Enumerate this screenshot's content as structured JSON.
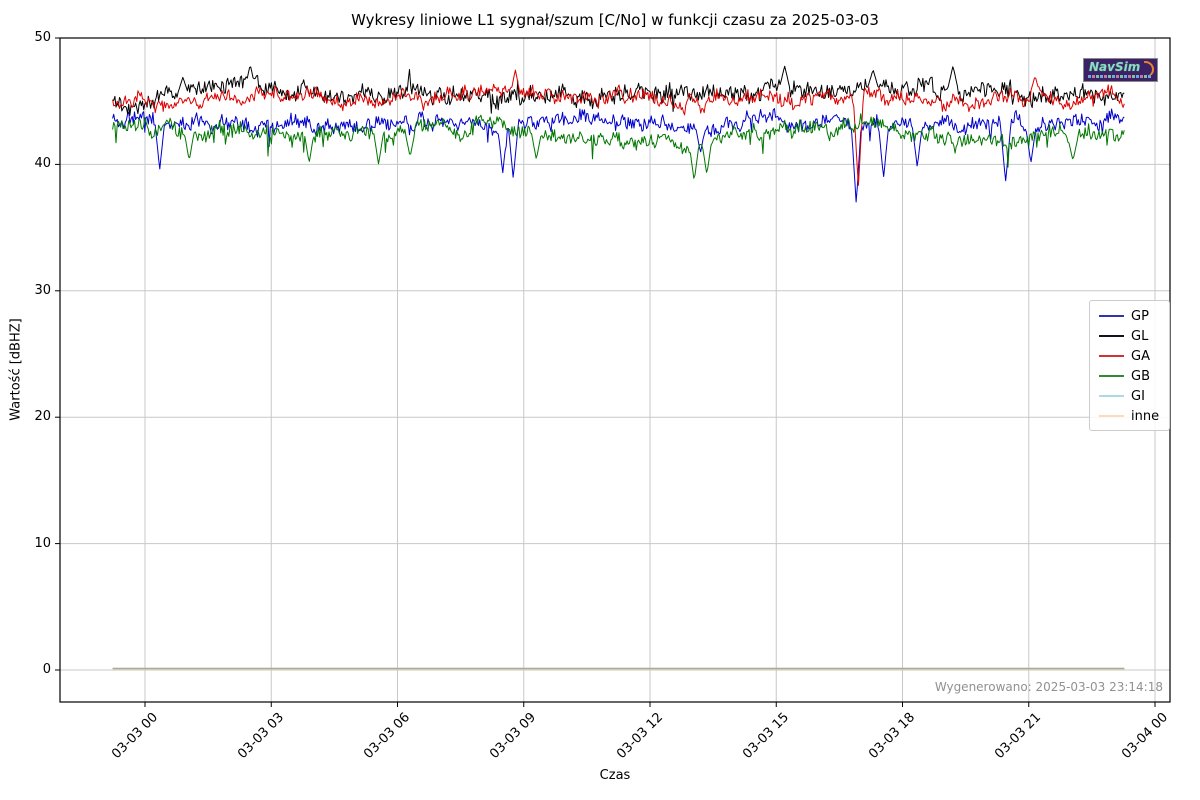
{
  "title": "Wykresy liniowe L1 sygnał/szum [C/No] w funkcji czasu za 2025-03-03",
  "generated_note": "Wygenerowano: 2025-03-03 23:14:18",
  "watermark": {
    "text": "NavSim"
  },
  "chart_data": {
    "type": "line",
    "title": "Wykresy liniowe L1 sygnał/szum [C/No] w funkcji czasu za 2025-03-03",
    "xlabel": "Czas",
    "ylabel": "Wartość [dBHZ]",
    "grid": true,
    "legend_position": "right",
    "y_ticks": [
      0,
      10,
      20,
      30,
      40,
      50
    ],
    "ylim": [
      -2.5,
      50
    ],
    "x_tick_labels": [
      "03-03 00",
      "03-03 03",
      "03-03 06",
      "03-03 09",
      "03-03 12",
      "03-03 15",
      "03-03 18",
      "03-03 21",
      "03-04 00"
    ],
    "x_tick_hours": [
      0,
      3,
      6,
      9,
      12,
      15,
      18,
      21,
      24
    ],
    "data_time_range_hours": [
      -0.77,
      23.27
    ],
    "series": [
      {
        "name": "GP",
        "color": "#0000cc",
        "legend_color": "#3333aa",
        "width": 1,
        "noise": 0.45,
        "spike_prob": 0.03,
        "spike_amp": 1.6,
        "spike_dir": -1,
        "seed": 11,
        "base_hourly": [
          43.6,
          43.2,
          43.4,
          43.6,
          43.3,
          43.1,
          43.5,
          43.3,
          43.0,
          43.2,
          43.6,
          43.4,
          43.2,
          43.0,
          43.3,
          43.7,
          43.5,
          43.2,
          43.0,
          43.3,
          43.1,
          42.9,
          43.3,
          43.5,
          43.4
        ],
        "dips": [
          [
            0.35,
            39.6
          ],
          [
            8.5,
            39.3
          ],
          [
            8.75,
            38.9
          ],
          [
            13.2,
            40.9
          ],
          [
            16.9,
            36.9
          ],
          [
            17.55,
            38.9
          ],
          [
            18.35,
            39.8
          ],
          [
            20.45,
            38.6
          ],
          [
            21.05,
            40.1
          ]
        ],
        "peaks": []
      },
      {
        "name": "GL",
        "color": "#000000",
        "legend_color": "#111122",
        "width": 1,
        "noise": 0.55,
        "spike_prob": 0.04,
        "spike_amp": 1.1,
        "spike_dir": 0,
        "seed": 22,
        "base_hourly": [
          45.3,
          45.7,
          46.2,
          45.9,
          45.6,
          45.4,
          45.7,
          45.5,
          45.3,
          45.6,
          45.4,
          45.5,
          45.7,
          45.4,
          45.6,
          46.1,
          45.9,
          46.2,
          46.0,
          46.1,
          45.6,
          45.4,
          45.7,
          45.5,
          45.4
        ],
        "dips": [],
        "peaks": [
          [
            0.9,
            46.9
          ],
          [
            2.5,
            47.9
          ],
          [
            15.2,
            47.8
          ],
          [
            17.3,
            47.5
          ],
          [
            19.2,
            47.8
          ]
        ]
      },
      {
        "name": "GA",
        "color": "#dd0000",
        "legend_color": "#cc3333",
        "width": 1,
        "noise": 0.42,
        "spike_prob": 0.02,
        "spike_amp": 1.1,
        "spike_dir": 0,
        "seed": 33,
        "base_hourly": [
          44.9,
          45.1,
          45.0,
          45.3,
          45.1,
          45.2,
          45.1,
          45.3,
          45.6,
          45.4,
          45.1,
          45.2,
          45.0,
          45.1,
          45.3,
          44.9,
          45.1,
          45.4,
          45.2,
          44.8,
          45.0,
          45.6,
          45.3,
          45.7,
          45.0
        ],
        "dips": [
          [
            16.95,
            38.2
          ]
        ],
        "peaks": [
          [
            8.8,
            47.5
          ],
          [
            21.15,
            47.0
          ]
        ]
      },
      {
        "name": "GB",
        "color": "#007700",
        "legend_color": "#338833",
        "width": 1,
        "noise": 0.45,
        "spike_prob": 0.04,
        "spike_amp": 1.4,
        "spike_dir": -1,
        "seed": 44,
        "base_hourly": [
          42.9,
          42.6,
          42.8,
          42.4,
          42.6,
          42.7,
          42.5,
          42.8,
          42.9,
          42.6,
          42.3,
          42.1,
          41.9,
          41.6,
          42.4,
          42.7,
          42.9,
          43.1,
          42.6,
          42.3,
          42.1,
          41.9,
          42.1,
          42.4,
          42.7
        ],
        "dips": [
          [
            1.05,
            40.3
          ],
          [
            3.9,
            40.1
          ],
          [
            5.55,
            40.0
          ],
          [
            6.3,
            40.6
          ],
          [
            9.3,
            40.4
          ],
          [
            13.05,
            38.7
          ],
          [
            13.35,
            39.2
          ],
          [
            22.05,
            40.3
          ]
        ],
        "peaks": []
      },
      {
        "name": "GI",
        "color": "#c0bfae",
        "legend_color": "#add8e6",
        "width": 1.2,
        "flat": 0.12,
        "seed": 55,
        "base_hourly": [],
        "dips": [],
        "peaks": []
      },
      {
        "name": "inne",
        "color": "#b3a98c",
        "legend_color": "#ffdab9",
        "width": 1.4,
        "flat": 0.12,
        "seed": 66,
        "base_hourly": [],
        "dips": [],
        "peaks": []
      }
    ]
  }
}
